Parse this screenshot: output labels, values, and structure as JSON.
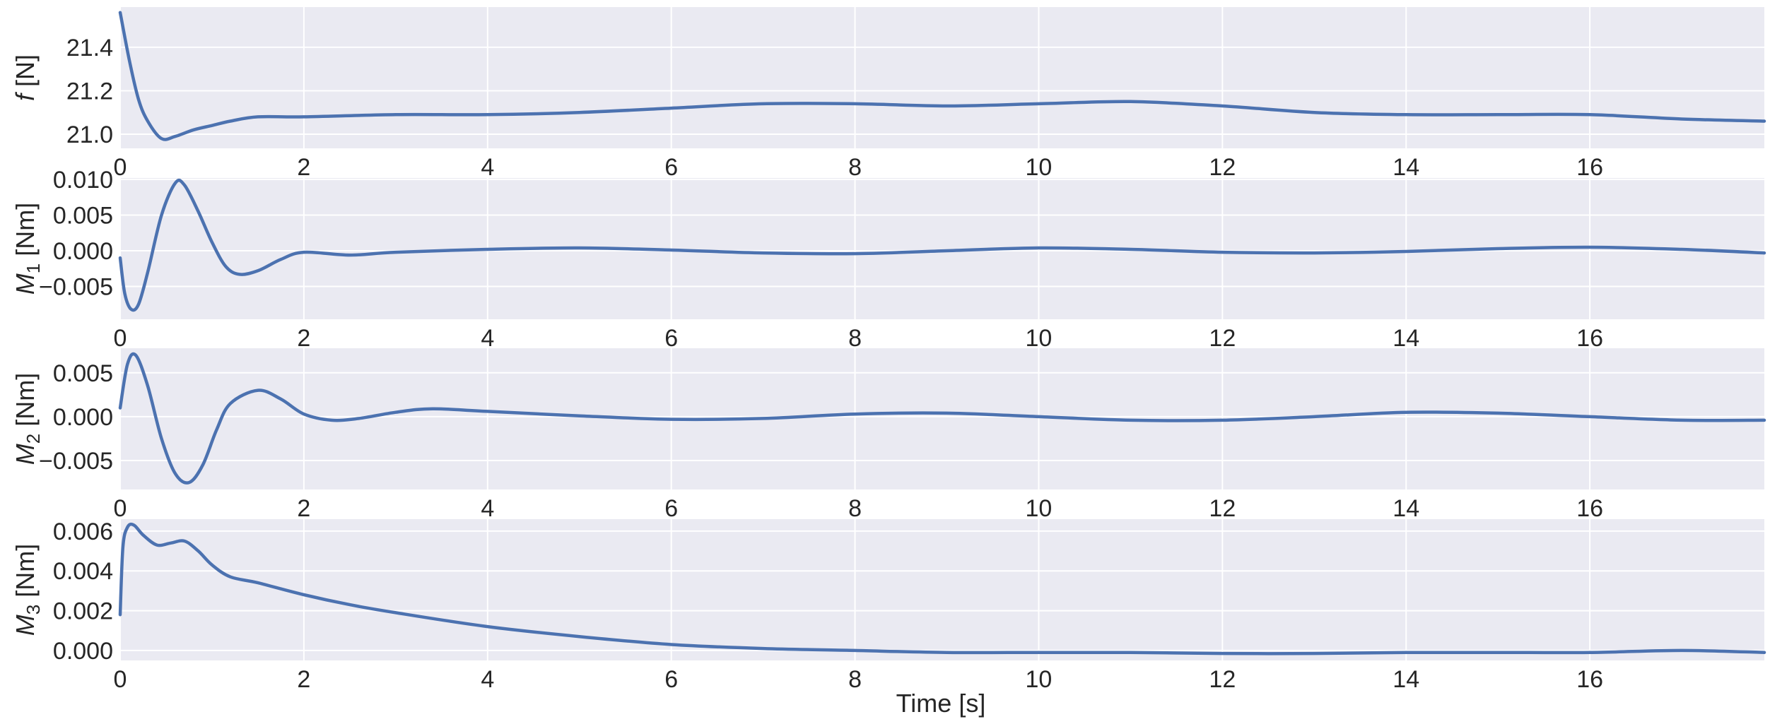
{
  "figure": {
    "xlabel": "Time [s]",
    "line_color": "#4c72b0",
    "panel_bg": "#eaeaf2",
    "grid_color": "#ffffff"
  },
  "chart_data": [
    {
      "type": "line",
      "ylabel": "f [N]",
      "ylabel_symbol": "f",
      "ylabel_subscript": "",
      "ylabel_unit": " [N]",
      "xlim": [
        0,
        17.9
      ],
      "ylim": [
        20.935,
        21.585
      ],
      "xticks": [
        0,
        2,
        4,
        6,
        8,
        10,
        12,
        14,
        16
      ],
      "yticks": [
        "21.0",
        "21.2",
        "21.4"
      ],
      "ytick_values": [
        21.0,
        21.2,
        21.4
      ],
      "grid": true,
      "x": [
        0,
        0.1,
        0.2,
        0.3,
        0.45,
        0.6,
        0.8,
        1.0,
        1.2,
        1.5,
        2.0,
        3.0,
        4.0,
        5.0,
        6.0,
        7.0,
        8.0,
        9.0,
        10.0,
        11.0,
        12.0,
        13.0,
        14.0,
        15.0,
        16.0,
        17.0,
        17.9
      ],
      "y": [
        21.56,
        21.34,
        21.16,
        21.06,
        20.98,
        20.99,
        21.02,
        21.04,
        21.06,
        21.08,
        21.08,
        21.09,
        21.09,
        21.1,
        21.12,
        21.14,
        21.14,
        21.13,
        21.14,
        21.15,
        21.13,
        21.1,
        21.09,
        21.09,
        21.09,
        21.07,
        21.06
      ]
    },
    {
      "type": "line",
      "ylabel": "M1 [Nm]",
      "ylabel_symbol": "M",
      "ylabel_subscript": "1",
      "ylabel_unit": " [Nm]",
      "xlim": [
        0,
        17.9
      ],
      "ylim": [
        -0.0096,
        0.0102
      ],
      "xticks": [
        0,
        2,
        4,
        6,
        8,
        10,
        12,
        14,
        16
      ],
      "yticks": [
        "0.010",
        "0.005",
        "0.000",
        "−0.005"
      ],
      "ytick_values": [
        0.01,
        0.005,
        0.0,
        -0.005
      ],
      "grid": true,
      "x": [
        0,
        0.05,
        0.12,
        0.2,
        0.3,
        0.45,
        0.6,
        0.7,
        0.85,
        1.0,
        1.15,
        1.3,
        1.5,
        1.75,
        2.0,
        2.5,
        3.0,
        4.0,
        5.0,
        6.0,
        7.0,
        8.0,
        9.0,
        10.0,
        11.0,
        12.0,
        13.0,
        14.0,
        15.0,
        16.0,
        17.0,
        17.9
      ],
      "y": [
        -0.001,
        -0.006,
        -0.0082,
        -0.0075,
        -0.003,
        0.005,
        0.0095,
        0.0092,
        0.0055,
        0.0012,
        -0.0022,
        -0.0033,
        -0.0028,
        -0.0012,
        -0.0002,
        -0.0006,
        -0.0002,
        0.0002,
        0.0004,
        0.0001,
        -0.0003,
        -0.0004,
        0.0,
        0.0004,
        0.0002,
        -0.0002,
        -0.0003,
        -0.0001,
        0.0003,
        0.0005,
        0.0002,
        -0.0003
      ]
    },
    {
      "type": "line",
      "ylabel": "M2 [Nm]",
      "ylabel_symbol": "M",
      "ylabel_subscript": "2",
      "ylabel_unit": " [Nm]",
      "xlim": [
        0,
        17.9
      ],
      "ylim": [
        -0.0083,
        0.0078
      ],
      "xticks": [
        0,
        2,
        4,
        6,
        8,
        10,
        12,
        14,
        16
      ],
      "yticks": [
        "0.005",
        "0.000",
        "−0.005"
      ],
      "ytick_values": [
        0.005,
        0.0,
        -0.005
      ],
      "grid": true,
      "x": [
        0,
        0.08,
        0.17,
        0.3,
        0.45,
        0.6,
        0.75,
        0.9,
        1.05,
        1.2,
        1.5,
        1.75,
        2.0,
        2.3,
        2.6,
        3.0,
        3.4,
        4.0,
        5.0,
        6.0,
        7.0,
        8.0,
        9.0,
        10.0,
        11.0,
        12.0,
        13.0,
        14.0,
        15.0,
        16.0,
        17.0,
        17.9
      ],
      "y": [
        0.001,
        0.006,
        0.007,
        0.0035,
        -0.0025,
        -0.0065,
        -0.0075,
        -0.0055,
        -0.0015,
        0.0015,
        0.003,
        0.002,
        0.0003,
        -0.0004,
        -0.0002,
        0.0005,
        0.0009,
        0.0006,
        0.0001,
        -0.0003,
        -0.0002,
        0.0003,
        0.0004,
        0.0,
        -0.0004,
        -0.0004,
        0.0,
        0.0005,
        0.0004,
        0.0,
        -0.0004,
        -0.0004
      ]
    },
    {
      "type": "line",
      "ylabel": "M3 [Nm]",
      "ylabel_symbol": "M",
      "ylabel_subscript": "3",
      "ylabel_unit": " [Nm]",
      "xlim": [
        0,
        17.9
      ],
      "ylim": [
        -0.0005,
        0.0066
      ],
      "xticks": [
        0,
        2,
        4,
        6,
        8,
        10,
        12,
        14,
        16
      ],
      "yticks": [
        "0.006",
        "0.004",
        "0.002",
        "0.000"
      ],
      "ytick_values": [
        0.006,
        0.004,
        0.002,
        0.0
      ],
      "grid": true,
      "x": [
        0,
        0.03,
        0.08,
        0.15,
        0.25,
        0.4,
        0.55,
        0.7,
        0.85,
        1.0,
        1.2,
        1.5,
        2.0,
        2.5,
        3.0,
        4.0,
        5.0,
        6.0,
        7.0,
        8.0,
        9.0,
        10.0,
        11.0,
        12.0,
        13.0,
        14.0,
        15.0,
        16.0,
        17.0,
        17.9
      ],
      "y": [
        0.0018,
        0.0052,
        0.0062,
        0.0063,
        0.0058,
        0.0053,
        0.0054,
        0.0055,
        0.005,
        0.0043,
        0.0037,
        0.0034,
        0.0028,
        0.0023,
        0.0019,
        0.0012,
        0.0007,
        0.0003,
        0.0001,
        0.0,
        -0.0001,
        -0.0001,
        -0.0001,
        -0.00015,
        -0.00015,
        -0.0001,
        -0.0001,
        -0.0001,
        0.0,
        -0.0001
      ]
    }
  ]
}
